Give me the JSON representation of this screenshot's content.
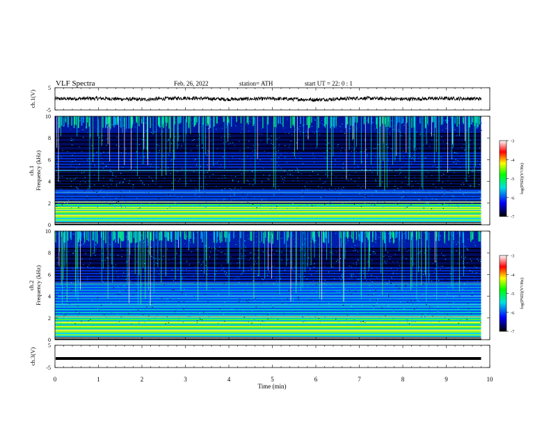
{
  "header": {
    "title": "VLF  Spectra",
    "date": "Feb. 26, 2022",
    "station": "station= ATH",
    "start": "start  UT  =    22: 0   : 1"
  },
  "colorbar": {
    "label": "log(PSD)(V²/Hz)",
    "ticks": [
      "-3",
      "-4",
      "-5",
      "-6",
      "-7"
    ],
    "colors": [
      "#000000",
      "#0000ff",
      "#00e0e0",
      "#00ff00",
      "#ffff00",
      "#ff0000",
      "#ffffff"
    ]
  },
  "chart_data": [
    {
      "type": "line",
      "name": "ch1-waveform",
      "ylabel": "ch.1(V)",
      "ylim": [
        -5,
        5
      ],
      "yticks": [
        "5",
        "-5"
      ],
      "x": [
        0,
        1,
        2,
        3,
        4,
        5,
        6,
        7,
        8,
        9,
        9.8
      ],
      "values": [
        0,
        0.2,
        -0.3,
        0.4,
        -0.2,
        0.1,
        -0.4,
        0.3,
        -0.1,
        0.2,
        0
      ]
    },
    {
      "type": "heatmap",
      "name": "ch1-spectrogram",
      "ylabel": "ch.1\nFrequency  (kHz)",
      "ylim": [
        0,
        10
      ],
      "yticks": [
        "0",
        "2",
        "4",
        "6",
        "8",
        "10"
      ],
      "xlim": [
        0,
        10
      ],
      "data_end_min": 9.8
    },
    {
      "type": "heatmap",
      "name": "ch2-spectrogram",
      "ylabel": "ch.2\nFrequency  (kHz)",
      "ylim": [
        0,
        10
      ],
      "yticks": [
        "0",
        "2",
        "4",
        "6",
        "8",
        "10"
      ],
      "xlim": [
        0,
        10
      ],
      "data_end_min": 9.8
    },
    {
      "type": "line",
      "name": "ch3-waveform",
      "ylabel": "ch.3(V)",
      "ylim": [
        -5,
        5
      ],
      "yticks": [
        "5",
        "-5"
      ],
      "x": [
        0,
        9.8
      ],
      "values": [
        0,
        0
      ]
    }
  ],
  "xaxis": {
    "label": "Time  (min)",
    "ticks": [
      "0",
      "1",
      "2",
      "3",
      "4",
      "5",
      "6",
      "7",
      "8",
      "9",
      "10"
    ],
    "xlim": [
      0,
      10
    ]
  }
}
